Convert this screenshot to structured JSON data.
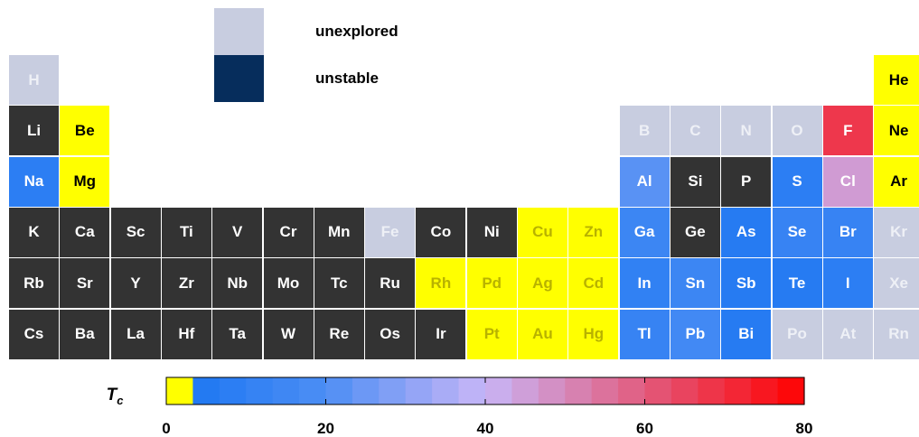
{
  "legend": {
    "unexplored": {
      "label": "unexplored",
      "color": "#c8cde0"
    },
    "unstable": {
      "label": "unstable",
      "color": "#062d5c"
    }
  },
  "colors": {
    "dark": "#333333",
    "superconductor_low": "#ffff00",
    "unexplored": "#c8cde0",
    "unstable": "#062d5c"
  },
  "chart_data": {
    "type": "heatmap",
    "colorbar": {
      "label": "T",
      "label_subscript": "c",
      "range": [
        0,
        80
      ],
      "ticks": [
        0,
        20,
        40,
        60,
        80
      ],
      "stops": [
        {
          "value": 0,
          "color": "#ffff00"
        },
        {
          "value": 3.5,
          "color": "#ffff00"
        },
        {
          "value": 3.5,
          "color": "#1f78f2"
        },
        {
          "value": 20,
          "color": "#4d8ef4"
        },
        {
          "value": 40,
          "color": "#c8b6f7"
        },
        {
          "value": 60,
          "color": "#e25b7e"
        },
        {
          "value": 80,
          "color": "#ff0000"
        }
      ]
    },
    "elements": [
      {
        "symbol": "H",
        "row": 0,
        "col": 0,
        "category": "unexplored"
      },
      {
        "symbol": "He",
        "row": 0,
        "col": 17,
        "category": "low"
      },
      {
        "symbol": "Li",
        "row": 1,
        "col": 0,
        "category": "dark"
      },
      {
        "symbol": "Be",
        "row": 1,
        "col": 1,
        "category": "low"
      },
      {
        "symbol": "B",
        "row": 1,
        "col": 12,
        "category": "unexplored"
      },
      {
        "symbol": "C",
        "row": 1,
        "col": 13,
        "category": "unexplored"
      },
      {
        "symbol": "N",
        "row": 1,
        "col": 14,
        "category": "unexplored"
      },
      {
        "symbol": "O",
        "row": 1,
        "col": 15,
        "category": "unexplored"
      },
      {
        "symbol": "F",
        "row": 1,
        "col": 16,
        "category": "tc",
        "tc": 68
      },
      {
        "symbol": "Ne",
        "row": 1,
        "col": 17,
        "category": "low"
      },
      {
        "symbol": "Na",
        "row": 2,
        "col": 0,
        "category": "tc",
        "tc": 8
      },
      {
        "symbol": "Mg",
        "row": 2,
        "col": 1,
        "category": "low"
      },
      {
        "symbol": "Al",
        "row": 2,
        "col": 12,
        "category": "tc",
        "tc": 22
      },
      {
        "symbol": "Si",
        "row": 2,
        "col": 13,
        "category": "dark"
      },
      {
        "symbol": "P",
        "row": 2,
        "col": 14,
        "category": "dark"
      },
      {
        "symbol": "S",
        "row": 2,
        "col": 15,
        "category": "tc",
        "tc": 8
      },
      {
        "symbol": "Cl",
        "row": 2,
        "col": 16,
        "category": "tc",
        "tc": 46
      },
      {
        "symbol": "Ar",
        "row": 2,
        "col": 17,
        "category": "low"
      },
      {
        "symbol": "K",
        "row": 3,
        "col": 0,
        "category": "dark"
      },
      {
        "symbol": "Ca",
        "row": 3,
        "col": 1,
        "category": "dark"
      },
      {
        "symbol": "Sc",
        "row": 3,
        "col": 2,
        "category": "dark"
      },
      {
        "symbol": "Ti",
        "row": 3,
        "col": 3,
        "category": "dark"
      },
      {
        "symbol": "V",
        "row": 3,
        "col": 4,
        "category": "dark"
      },
      {
        "symbol": "Cr",
        "row": 3,
        "col": 5,
        "category": "dark"
      },
      {
        "symbol": "Mn",
        "row": 3,
        "col": 6,
        "category": "dark"
      },
      {
        "symbol": "Fe",
        "row": 3,
        "col": 7,
        "category": "unexplored"
      },
      {
        "symbol": "Co",
        "row": 3,
        "col": 8,
        "category": "dark"
      },
      {
        "symbol": "Ni",
        "row": 3,
        "col": 9,
        "category": "dark"
      },
      {
        "symbol": "Cu",
        "row": 3,
        "col": 10,
        "category": "low"
      },
      {
        "symbol": "Zn",
        "row": 3,
        "col": 11,
        "category": "low"
      },
      {
        "symbol": "Ga",
        "row": 3,
        "col": 12,
        "category": "tc",
        "tc": 14
      },
      {
        "symbol": "Ge",
        "row": 3,
        "col": 13,
        "category": "dark"
      },
      {
        "symbol": "As",
        "row": 3,
        "col": 14,
        "category": "tc",
        "tc": 6
      },
      {
        "symbol": "Se",
        "row": 3,
        "col": 15,
        "category": "tc",
        "tc": 12
      },
      {
        "symbol": "Br",
        "row": 3,
        "col": 16,
        "category": "tc",
        "tc": 12
      },
      {
        "symbol": "Kr",
        "row": 3,
        "col": 17,
        "category": "unexplored"
      },
      {
        "symbol": "Rb",
        "row": 4,
        "col": 0,
        "category": "dark"
      },
      {
        "symbol": "Sr",
        "row": 4,
        "col": 1,
        "category": "dark"
      },
      {
        "symbol": "Y",
        "row": 4,
        "col": 2,
        "category": "dark"
      },
      {
        "symbol": "Zr",
        "row": 4,
        "col": 3,
        "category": "dark"
      },
      {
        "symbol": "Nb",
        "row": 4,
        "col": 4,
        "category": "dark"
      },
      {
        "symbol": "Mo",
        "row": 4,
        "col": 5,
        "category": "dark"
      },
      {
        "symbol": "Tc",
        "row": 4,
        "col": 6,
        "category": "dark"
      },
      {
        "symbol": "Ru",
        "row": 4,
        "col": 7,
        "category": "dark"
      },
      {
        "symbol": "Rh",
        "row": 4,
        "col": 8,
        "category": "low"
      },
      {
        "symbol": "Pd",
        "row": 4,
        "col": 9,
        "category": "low"
      },
      {
        "symbol": "Ag",
        "row": 4,
        "col": 10,
        "category": "low"
      },
      {
        "symbol": "Cd",
        "row": 4,
        "col": 11,
        "category": "low"
      },
      {
        "symbol": "In",
        "row": 4,
        "col": 12,
        "category": "tc",
        "tc": 10
      },
      {
        "symbol": "Sn",
        "row": 4,
        "col": 13,
        "category": "tc",
        "tc": 14
      },
      {
        "symbol": "Sb",
        "row": 4,
        "col": 14,
        "category": "tc",
        "tc": 6
      },
      {
        "symbol": "Te",
        "row": 4,
        "col": 15,
        "category": "tc",
        "tc": 6
      },
      {
        "symbol": "I",
        "row": 4,
        "col": 16,
        "category": "tc",
        "tc": 8
      },
      {
        "symbol": "Xe",
        "row": 4,
        "col": 17,
        "category": "unexplored"
      },
      {
        "symbol": "Cs",
        "row": 5,
        "col": 0,
        "category": "dark"
      },
      {
        "symbol": "Ba",
        "row": 5,
        "col": 1,
        "category": "dark"
      },
      {
        "symbol": "La",
        "row": 5,
        "col": 2,
        "category": "dark"
      },
      {
        "symbol": "Hf",
        "row": 5,
        "col": 3,
        "category": "dark"
      },
      {
        "symbol": "Ta",
        "row": 5,
        "col": 4,
        "category": "dark"
      },
      {
        "symbol": "W",
        "row": 5,
        "col": 5,
        "category": "dark"
      },
      {
        "symbol": "Re",
        "row": 5,
        "col": 6,
        "category": "dark"
      },
      {
        "symbol": "Os",
        "row": 5,
        "col": 7,
        "category": "dark"
      },
      {
        "symbol": "Ir",
        "row": 5,
        "col": 8,
        "category": "dark"
      },
      {
        "symbol": "Pt",
        "row": 5,
        "col": 9,
        "category": "low"
      },
      {
        "symbol": "Au",
        "row": 5,
        "col": 10,
        "category": "low"
      },
      {
        "symbol": "Hg",
        "row": 5,
        "col": 11,
        "category": "low"
      },
      {
        "symbol": "Tl",
        "row": 5,
        "col": 12,
        "category": "tc",
        "tc": 12
      },
      {
        "symbol": "Pb",
        "row": 5,
        "col": 13,
        "category": "tc",
        "tc": 16
      },
      {
        "symbol": "Bi",
        "row": 5,
        "col": 14,
        "category": "tc",
        "tc": 6
      },
      {
        "symbol": "Po",
        "row": 5,
        "col": 15,
        "category": "unexplored"
      },
      {
        "symbol": "At",
        "row": 5,
        "col": 16,
        "category": "unexplored"
      },
      {
        "symbol": "Rn",
        "row": 5,
        "col": 17,
        "category": "unexplored"
      }
    ]
  }
}
